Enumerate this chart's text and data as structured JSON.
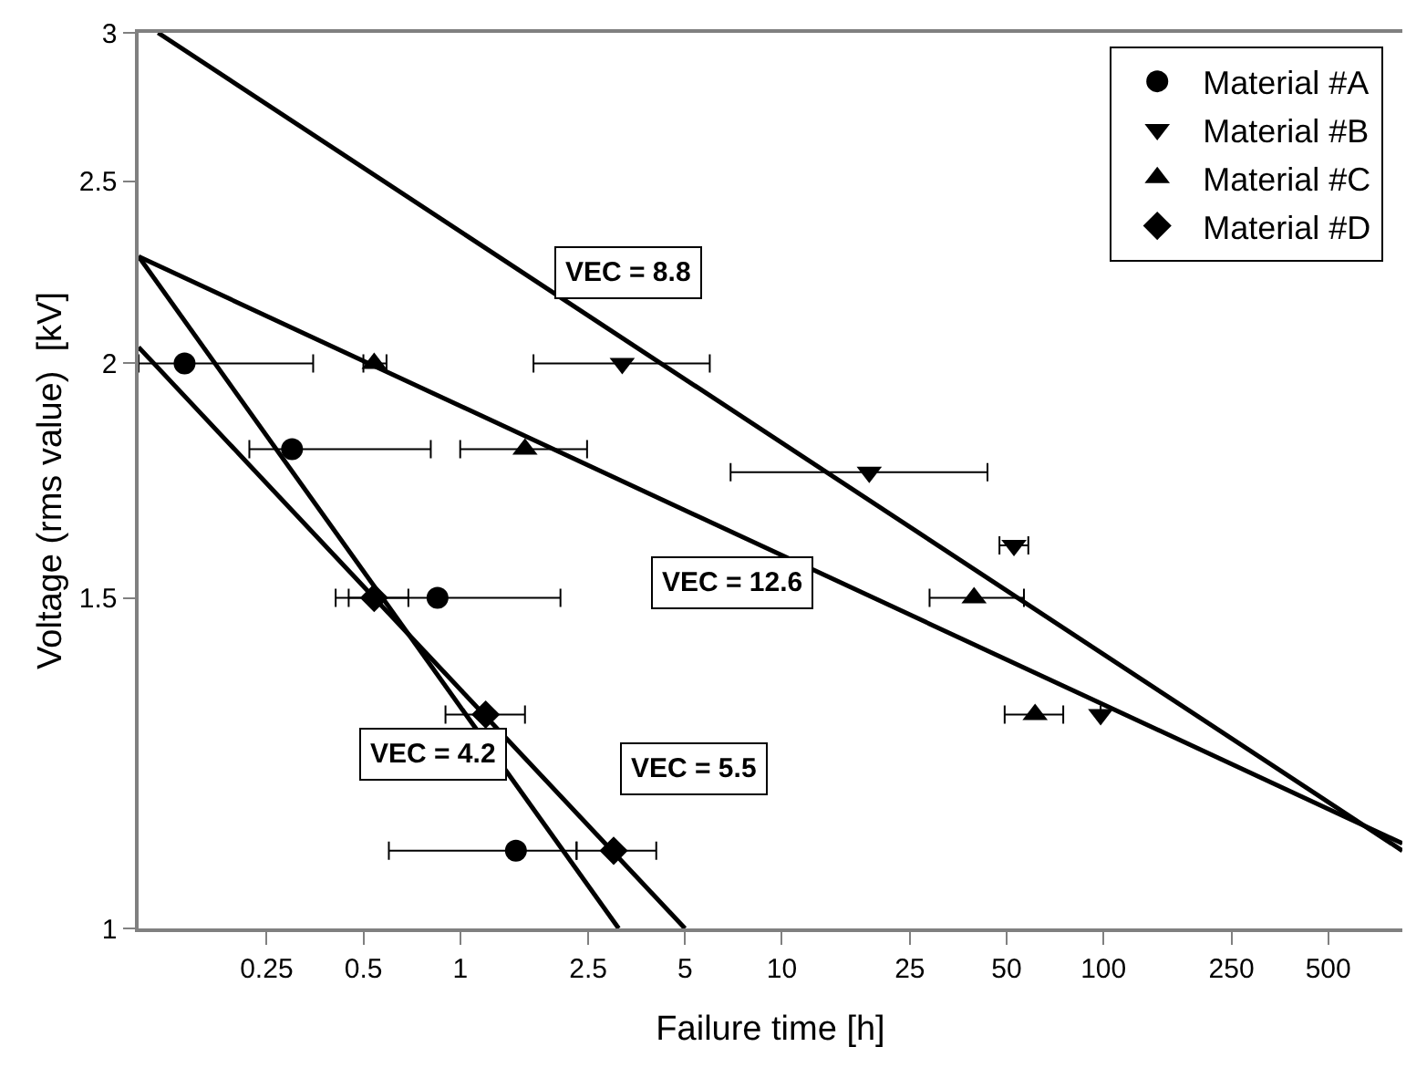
{
  "chart_data": {
    "type": "scatter",
    "xlabel": "Failure time [h]",
    "ylabel": "Voltage (rms value)  [kV]",
    "log": "xy",
    "xlim": [
      0.1,
      850
    ],
    "ylim": [
      1,
      3
    ],
    "xticks": [
      0.25,
      0.5,
      1,
      2.5,
      5,
      10,
      25,
      50,
      100,
      250,
      500
    ],
    "yticks": [
      1,
      1.5,
      2,
      2.5,
      3
    ],
    "grid": false,
    "legend": "top right",
    "series": [
      {
        "name": "Material #A",
        "marker": "circle",
        "color": "#000000",
        "x": [
          0.139,
          0.3,
          0.85,
          1.49
        ],
        "values": [
          2,
          1.8,
          1.5,
          1.1
        ],
        "xerrors": [
          [
            0.1,
            0.349
          ],
          [
            0.221,
            0.81
          ],
          [
            0.41,
            2.05
          ],
          [
            0.6,
            2.3
          ]
        ]
      },
      {
        "name": "Material #B",
        "marker": "triangle-down",
        "color": "#000000",
        "x": [
          3.19,
          18.7,
          52.7,
          98
        ],
        "values": [
          2,
          1.75,
          1.6,
          1.3
        ],
        "xerrors": [
          [
            1.69,
            5.97
          ],
          [
            6.93,
            43.6
          ],
          [
            47.5,
            58.4
          ],
          null
        ]
      },
      {
        "name": "Material #C",
        "marker": "triangle-up",
        "color": "#000000",
        "x": [
          0.54,
          1.59,
          39.6,
          61.3
        ],
        "values": [
          2,
          1.8,
          1.5,
          1.3
        ],
        "xerrors": [
          [
            0.5,
            0.59
          ],
          [
            1.0,
            2.48
          ],
          [
            28.8,
            56.6
          ],
          [
            49.3,
            75
          ]
        ]
      },
      {
        "name": "Material #D",
        "marker": "diamond",
        "color": "#000000",
        "x": [
          0.54,
          1.2,
          3.0
        ],
        "values": [
          1.5,
          1.3,
          1.1
        ],
        "xerrors": [
          [
            0.45,
            0.69
          ],
          [
            0.9,
            1.59
          ],
          [
            2.3,
            4.07
          ]
        ]
      },
      {
        "type": "line",
        "marker": "none",
        "line_style": "solid",
        "color": "#000000",
        "x": [
          0.1,
          3.11
        ],
        "values": [
          2.28,
          1
        ]
      },
      {
        "type": "line",
        "marker": "none",
        "line_style": "solid",
        "color": "#000000",
        "x": [
          0.115,
          850
        ],
        "values": [
          3,
          1.1
        ]
      },
      {
        "type": "line",
        "marker": "none",
        "line_style": "solid",
        "color": "#000000",
        "x": [
          0.1,
          850
        ],
        "values": [
          2.28,
          1.11
        ]
      },
      {
        "type": "line",
        "marker": "none",
        "line_style": "solid",
        "color": "#000000",
        "x": [
          0.1,
          5.0
        ],
        "values": [
          2.04,
          1
        ]
      }
    ],
    "annotations": [
      "VEC = 8.8",
      "VEC = 12.6",
      "VEC = 4.2",
      "VEC = 5.5"
    ]
  }
}
